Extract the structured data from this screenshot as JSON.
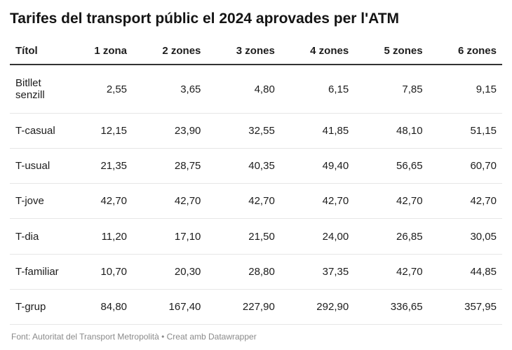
{
  "title": "Tarifes del transport públic el 2024 aprovades per l'ATM",
  "footer": "Font: Autoritat del Transport Metropolità • Creat amb Datawrapper",
  "chart_data": {
    "type": "table",
    "title": "Tarifes del transport públic el 2024 aprovades per l'ATM",
    "columns": [
      "Títol",
      "1 zona",
      "2 zones",
      "3 zones",
      "4 zones",
      "5 zones",
      "6 zones"
    ],
    "rows": [
      {
        "label": "Bitllet senzill",
        "values": [
          "2,55",
          "3,65",
          "4,80",
          "6,15",
          "7,85",
          "9,15"
        ]
      },
      {
        "label": "T-casual",
        "values": [
          "12,15",
          "23,90",
          "32,55",
          "41,85",
          "48,10",
          "51,15"
        ]
      },
      {
        "label": "T-usual",
        "values": [
          "21,35",
          "28,75",
          "40,35",
          "49,40",
          "56,65",
          "60,70"
        ]
      },
      {
        "label": "T-jove",
        "values": [
          "42,70",
          "42,70",
          "42,70",
          "42,70",
          "42,70",
          "42,70"
        ]
      },
      {
        "label": "T-dia",
        "values": [
          "11,20",
          "17,10",
          "21,50",
          "24,00",
          "26,85",
          "30,05"
        ]
      },
      {
        "label": "T-familiar",
        "values": [
          "10,70",
          "20,30",
          "28,80",
          "37,35",
          "42,70",
          "44,85"
        ]
      },
      {
        "label": "T-grup",
        "values": [
          "84,80",
          "167,40",
          "227,90",
          "292,90",
          "336,65",
          "357,95"
        ]
      }
    ],
    "source": "Font: Autoritat del Transport Metropolità",
    "tool": "Creat amb Datawrapper"
  }
}
